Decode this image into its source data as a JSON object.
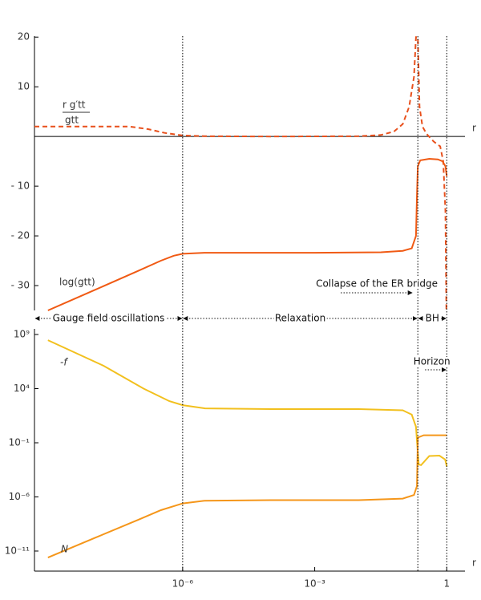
{
  "chart_data": [
    {
      "type": "line",
      "xscale": "log",
      "xlim": [
        4.3e-10,
        2.1
      ],
      "ylim": [
        -35,
        20.2
      ],
      "xlabel": "r",
      "yticks": [
        20,
        10,
        {
          "value": -10,
          "label": "- 10"
        },
        {
          "value": -20,
          "label": "- 20"
        },
        {
          "value": -30,
          "label": "- 30"
        }
      ],
      "series": [
        {
          "name": "r g′tt",
          "name_denominator": "gtt",
          "color": "#e8501c",
          "dash": true,
          "x": [
            4.3e-10,
            1e-08,
            6.3e-08,
            1.6e-07,
            4e-07,
            1e-06,
            3.2e-06,
            0.0001,
            0.01,
            0.032,
            0.063,
            0.1,
            0.14,
            0.18,
            0.2,
            0.22,
            0.24,
            0.28,
            0.35,
            0.5,
            0.71,
            0.83,
            0.93,
            0.98
          ],
          "values": [
            2,
            2,
            2,
            1.5,
            0.7,
            0.2,
            0.05,
            0,
            0.05,
            0.3,
            1,
            2.5,
            6,
            12,
            20,
            20,
            6,
            2,
            0.5,
            -1,
            -2,
            -5,
            -15,
            -35
          ]
        },
        {
          "name": "log(gtt)",
          "color": "#f05a14",
          "dash": false,
          "x": [
            8.7e-10,
            1e-08,
            1e-07,
            3.2e-07,
            6.3e-07,
            1e-06,
            3.2e-06,
            0.001,
            0.032,
            0.1,
            0.16,
            0.2,
            0.21,
            0.22,
            0.25,
            0.4,
            0.63,
            0.8,
            0.93,
            1
          ],
          "values": [
            -35,
            -30.9,
            -27,
            -25,
            -24,
            -23.6,
            -23.4,
            -23.4,
            -23.3,
            -23,
            -22.5,
            -20,
            -12,
            -6,
            -4.8,
            -4.5,
            -4.6,
            -5,
            -6,
            -8
          ]
        }
      ]
    },
    {
      "type": "line",
      "xscale": "log",
      "yscale": "log",
      "xlim": [
        4.3e-10,
        2.1
      ],
      "ylim": [
        1.4e-13,
        3300000000.0
      ],
      "xlabel": "r",
      "xticks": [
        {
          "value": 1e-06,
          "label": "10⁻⁶"
        },
        {
          "value": 0.001,
          "label": "10⁻³"
        },
        1
      ],
      "yticks": [
        {
          "value": 1000000000.0,
          "label": "10⁹"
        },
        {
          "value": 10000.0,
          "label": "10⁴"
        },
        {
          "value": 0.1,
          "label": "10⁻¹"
        },
        {
          "value": 1e-06,
          "label": "10⁻⁶"
        },
        {
          "value": 1e-11,
          "label": "10⁻¹¹"
        }
      ],
      "series": [
        {
          "name": "-f",
          "color": "#f2c01e",
          "dash": false,
          "x": [
            8.7e-10,
            1.6e-08,
            1.3e-07,
            5e-07,
            1e-06,
            3.2e-06,
            0.0001,
            0.01,
            0.1,
            0.16,
            0.2,
            0.21,
            0.23,
            0.26,
            0.4,
            0.68,
            0.92,
            1
          ],
          "values": [
            300000000.0,
            1300000.0,
            10000.0,
            700,
            300,
            150,
            130,
            130,
            100,
            40,
            3,
            0.15,
            0.001,
            0.00085,
            0.006,
            0.0065,
            0.0028,
            0.00065
          ]
        },
        {
          "name": "N",
          "color": "#f5961a",
          "dash": false,
          "x": [
            8.7e-10,
            1e-08,
            1e-07,
            3.2e-07,
            1e-06,
            3.2e-06,
            0.0001,
            0.01,
            0.1,
            0.18,
            0.21,
            0.22,
            0.3,
            1
          ],
          "values": [
            2.5e-12,
            1.6e-10,
            8e-09,
            6e-08,
            2.5e-07,
            4.5e-07,
            5e-07,
            5e-07,
            7e-07,
            1.5e-06,
            1e-05,
            0.3,
            0.5,
            0.5
          ]
        }
      ]
    }
  ],
  "vlines": [
    1e-06,
    0.22,
    1
  ],
  "regions": [
    {
      "label": "Gauge field oscillations",
      "from": 4.3e-10,
      "to": 1e-06
    },
    {
      "label": "Relaxation",
      "from": 1e-06,
      "to": 0.22
    },
    {
      "label": "BH",
      "from": 0.22,
      "to": 1
    }
  ],
  "arrows": [
    {
      "label": "Collapse of the ER bridge",
      "from": 0.0039,
      "to": 0.17
    },
    {
      "label": "Horizon",
      "from": 0.32,
      "to": 1
    }
  ]
}
